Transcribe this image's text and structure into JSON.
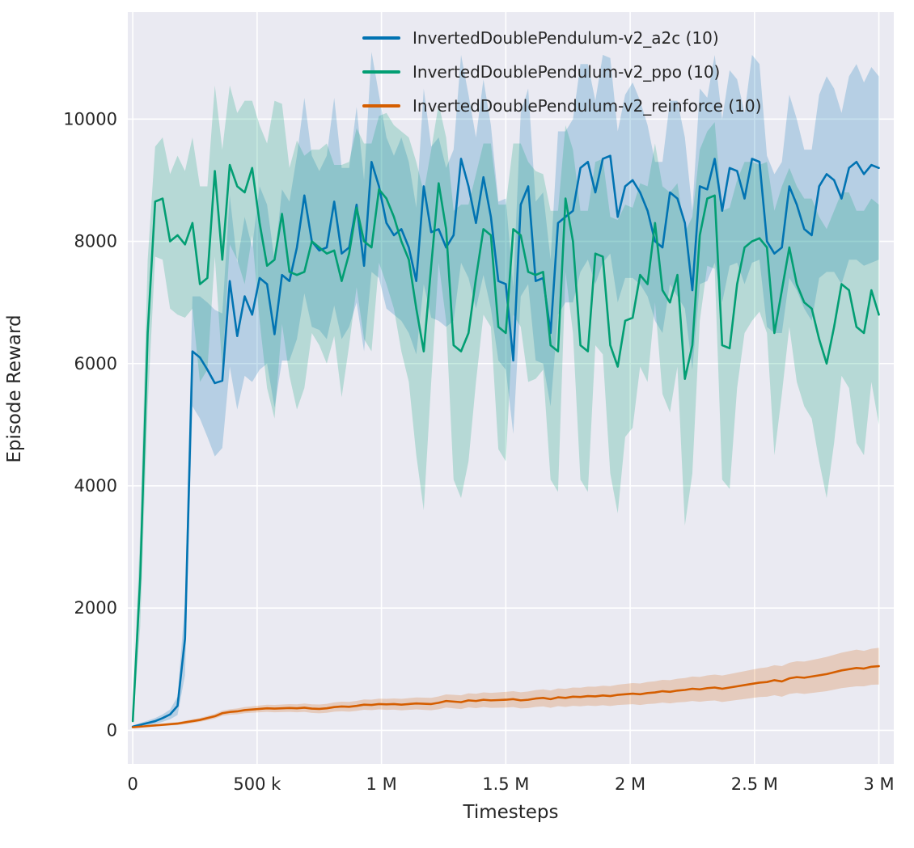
{
  "figure": {
    "background": "#ffffff",
    "plot_background": "#eaeaf2",
    "grid_color": "#ffffff",
    "text_color": "#262626"
  },
  "chart_data": {
    "type": "line",
    "title": "",
    "xlabel": "Timesteps",
    "ylabel": "Episode Reward",
    "xlim": [
      -20000,
      3060000
    ],
    "ylim": [
      -550,
      11750
    ],
    "grid": true,
    "legend_position": "upper center",
    "band": "mean±std shaded region per series",
    "xticks": {
      "values": [
        0,
        500000,
        1000000,
        1500000,
        2000000,
        2500000,
        3000000
      ],
      "labels": [
        "0",
        "500 k",
        "1 M",
        "1.5 M",
        "2 M",
        "2.5 M",
        "3 M"
      ]
    },
    "yticks": {
      "values": [
        0,
        2000,
        4000,
        6000,
        8000,
        10000
      ],
      "labels": [
        "0",
        "2000",
        "4000",
        "6000",
        "8000",
        "10000"
      ]
    },
    "x": [
      0,
      30000,
      60000,
      90000,
      120000,
      150000,
      180000,
      210000,
      240000,
      270000,
      300000,
      330000,
      360000,
      390000,
      420000,
      450000,
      480000,
      510000,
      540000,
      570000,
      600000,
      630000,
      660000,
      690000,
      720000,
      750000,
      780000,
      810000,
      840000,
      870000,
      900000,
      930000,
      960000,
      990000,
      1020000,
      1050000,
      1080000,
      1110000,
      1140000,
      1170000,
      1200000,
      1230000,
      1260000,
      1290000,
      1320000,
      1350000,
      1380000,
      1410000,
      1440000,
      1470000,
      1500000,
      1530000,
      1560000,
      1590000,
      1620000,
      1650000,
      1680000,
      1710000,
      1740000,
      1770000,
      1800000,
      1830000,
      1860000,
      1890000,
      1920000,
      1950000,
      1980000,
      2010000,
      2040000,
      2070000,
      2100000,
      2130000,
      2160000,
      2190000,
      2220000,
      2250000,
      2280000,
      2310000,
      2340000,
      2370000,
      2400000,
      2430000,
      2460000,
      2490000,
      2520000,
      2550000,
      2580000,
      2610000,
      2640000,
      2670000,
      2700000,
      2730000,
      2760000,
      2790000,
      2820000,
      2850000,
      2880000,
      2910000,
      2940000,
      2970000,
      3000000
    ],
    "series": [
      {
        "label": "InvertedDoublePendulum-v2_a2c (10)",
        "color": "#0173b2",
        "mean": [
          60,
          90,
          120,
          150,
          200,
          260,
          400,
          1500,
          6200,
          6100,
          5900,
          5680,
          5720,
          7350,
          6450,
          7100,
          6800,
          7400,
          7300,
          6480,
          7450,
          7350,
          7900,
          8750,
          8000,
          7850,
          7900,
          8650,
          7800,
          7900,
          8600,
          7600,
          9300,
          8900,
          8300,
          8100,
          8200,
          7900,
          7350,
          8900,
          8150,
          8200,
          7900,
          8100,
          9350,
          8900,
          8300,
          9050,
          8400,
          7350,
          7300,
          6050,
          8600,
          8900,
          7350,
          7400,
          6500,
          8300,
          8400,
          8500,
          9200,
          9300,
          8800,
          9350,
          9400,
          8400,
          8900,
          9000,
          8800,
          8500,
          8000,
          7900,
          8800,
          8700,
          8300,
          7200,
          8900,
          8850,
          9350,
          8500,
          9200,
          9150,
          8700,
          9350,
          9300,
          8000,
          7800,
          7900,
          8900,
          8600,
          8200,
          8100,
          8900,
          9100,
          9000,
          8700,
          9200,
          9300,
          9100,
          9250,
          9200
        ],
        "std": [
          20,
          30,
          40,
          50,
          60,
          80,
          150,
          600,
          900,
          1000,
          1100,
          1200,
          1100,
          1400,
          1200,
          1300,
          1100,
          1500,
          1300,
          1200,
          1400,
          1300,
          1500,
          1600,
          1400,
          1300,
          1500,
          1700,
          1400,
          1300,
          1600,
          1400,
          1800,
          1500,
          1400,
          1300,
          1500,
          1400,
          1200,
          1600,
          1400,
          1500,
          1300,
          1400,
          1700,
          1500,
          1400,
          1600,
          1500,
          1300,
          1400,
          1200,
          1500,
          1600,
          1300,
          1400,
          1200,
          1500,
          1400,
          1500,
          1700,
          1600,
          1500,
          1700,
          1600,
          1400,
          1500,
          1600,
          1500,
          1400,
          1300,
          1400,
          1500,
          1600,
          1400,
          1300,
          1600,
          1500,
          1700,
          1500,
          1600,
          1500,
          1400,
          1700,
          1600,
          1400,
          1300,
          1400,
          1500,
          1400,
          1300,
          1400,
          1500,
          1600,
          1500,
          1400,
          1500,
          1600,
          1500,
          1600,
          1500
        ]
      },
      {
        "label": "InvertedDoublePendulum-v2_ppo (10)",
        "color": "#029e73",
        "mean": [
          150,
          2500,
          6500,
          8650,
          8700,
          8000,
          8100,
          7950,
          8300,
          7300,
          7400,
          9150,
          7700,
          9250,
          8900,
          8800,
          9200,
          8300,
          7600,
          7700,
          8450,
          7500,
          7450,
          7500,
          8000,
          7900,
          7800,
          7850,
          7350,
          7800,
          8550,
          8000,
          7900,
          8850,
          8700,
          8400,
          8000,
          7700,
          6900,
          6200,
          7600,
          8950,
          8200,
          6300,
          6200,
          6500,
          7400,
          8200,
          8100,
          6600,
          6500,
          8200,
          8100,
          7500,
          7450,
          7500,
          6300,
          6200,
          8700,
          8000,
          6300,
          6200,
          7800,
          7750,
          6300,
          5950,
          6700,
          6750,
          7450,
          7300,
          8300,
          7200,
          7000,
          7450,
          5750,
          6300,
          8100,
          8700,
          8750,
          6300,
          6250,
          7300,
          7900,
          8000,
          8050,
          7900,
          6500,
          7200,
          7900,
          7300,
          7000,
          6900,
          6400,
          6000,
          6600,
          7300,
          7200,
          6600,
          6500,
          7200,
          6800
        ],
        "std": [
          100,
          800,
          1200,
          900,
          1000,
          1100,
          1300,
          1200,
          1400,
          1600,
          1500,
          1400,
          1800,
          1300,
          1200,
          1500,
          1100,
          1600,
          2000,
          2600,
          1800,
          1700,
          2200,
          1900,
          1500,
          1600,
          1800,
          1400,
          1900,
          1500,
          1300,
          1600,
          1700,
          1200,
          1400,
          1500,
          1800,
          2000,
          2400,
          2600,
          1900,
          1300,
          1500,
          2200,
          2400,
          2100,
          1700,
          1400,
          1500,
          2000,
          2100,
          1400,
          1500,
          1800,
          1700,
          1600,
          2200,
          2300,
          1200,
          1500,
          2200,
          2300,
          1500,
          1600,
          2100,
          2400,
          1900,
          1800,
          1500,
          1600,
          1300,
          1700,
          1800,
          1500,
          2400,
          2100,
          1400,
          1100,
          1200,
          2200,
          2300,
          1700,
          1400,
          1300,
          1200,
          1400,
          2000,
          1700,
          1300,
          1600,
          1700,
          1800,
          2000,
          2200,
          1900,
          1500,
          1600,
          1900,
          2000,
          1500,
          1800
        ]
      },
      {
        "label": "InvertedDoublePendulum-v2_reinforce (10)",
        "color": "#d55e00",
        "mean": [
          50,
          60,
          70,
          80,
          90,
          100,
          110,
          130,
          150,
          170,
          200,
          230,
          280,
          300,
          310,
          330,
          340,
          350,
          360,
          355,
          360,
          365,
          360,
          370,
          355,
          350,
          360,
          380,
          390,
          385,
          400,
          420,
          415,
          430,
          425,
          430,
          420,
          430,
          440,
          435,
          430,
          450,
          480,
          470,
          460,
          490,
          480,
          500,
          490,
          495,
          500,
          510,
          490,
          500,
          520,
          530,
          510,
          540,
          530,
          550,
          545,
          560,
          555,
          570,
          560,
          580,
          590,
          600,
          590,
          610,
          620,
          640,
          630,
          650,
          660,
          680,
          670,
          690,
          700,
          680,
          700,
          720,
          740,
          760,
          780,
          790,
          820,
          800,
          850,
          870,
          860,
          880,
          900,
          920,
          950,
          980,
          1000,
          1020,
          1010,
          1040,
          1050
        ],
        "std": [
          10,
          12,
          15,
          18,
          20,
          22,
          25,
          28,
          30,
          32,
          35,
          38,
          42,
          45,
          48,
          50,
          52,
          55,
          58,
          60,
          62,
          64,
          66,
          68,
          70,
          72,
          74,
          76,
          78,
          80,
          82,
          84,
          86,
          88,
          90,
          92,
          94,
          96,
          98,
          100,
          102,
          105,
          108,
          110,
          112,
          115,
          118,
          120,
          122,
          125,
          128,
          130,
          132,
          135,
          138,
          140,
          142,
          145,
          148,
          150,
          152,
          155,
          158,
          160,
          163,
          166,
          170,
          173,
          176,
          180,
          183,
          186,
          190,
          193,
          196,
          200,
          204,
          208,
          212,
          216,
          220,
          224,
          228,
          232,
          236,
          240,
          245,
          250,
          255,
          260,
          265,
          270,
          275,
          280,
          285,
          290,
          295,
          300,
          290,
          295,
          300
        ]
      }
    ]
  }
}
